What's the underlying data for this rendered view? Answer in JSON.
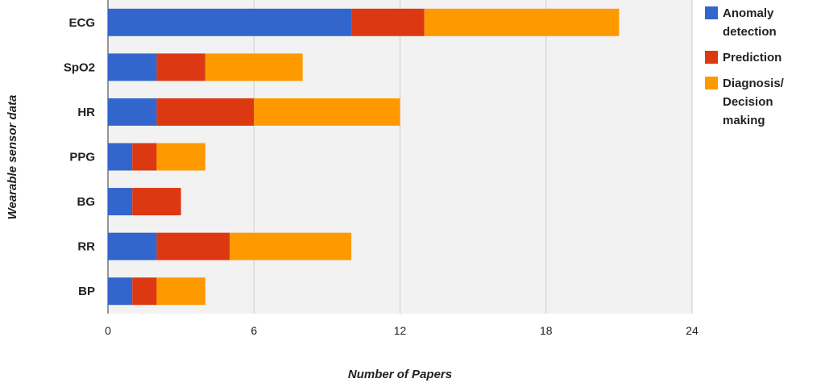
{
  "chart_data": {
    "type": "bar",
    "orientation": "horizontal",
    "stacked": true,
    "categories": [
      "ECG",
      "SpO2",
      "HR",
      "PPG",
      "BG",
      "RR",
      "BP"
    ],
    "series": [
      {
        "name": "Anomaly detection",
        "color": "#3366cc",
        "values": [
          10,
          2,
          2,
          1,
          1,
          2,
          1
        ]
      },
      {
        "name": "Prediction",
        "color": "#dc3912",
        "values": [
          3,
          2,
          4,
          1,
          2,
          3,
          1
        ]
      },
      {
        "name": "Diagnosis/ Decision making",
        "color": "#ff9900",
        "values": [
          8,
          4,
          6,
          2,
          0,
          5,
          2
        ]
      }
    ],
    "xlabel": "Number of Papers",
    "ylabel": "Wearable sensor data",
    "xlim": [
      0,
      24
    ],
    "xticks": [
      "0",
      "6",
      "12",
      "18",
      "24"
    ],
    "grid": true,
    "legend_position": "right",
    "plot_background": "#f2f2f2",
    "grid_color": "#cccccc"
  }
}
